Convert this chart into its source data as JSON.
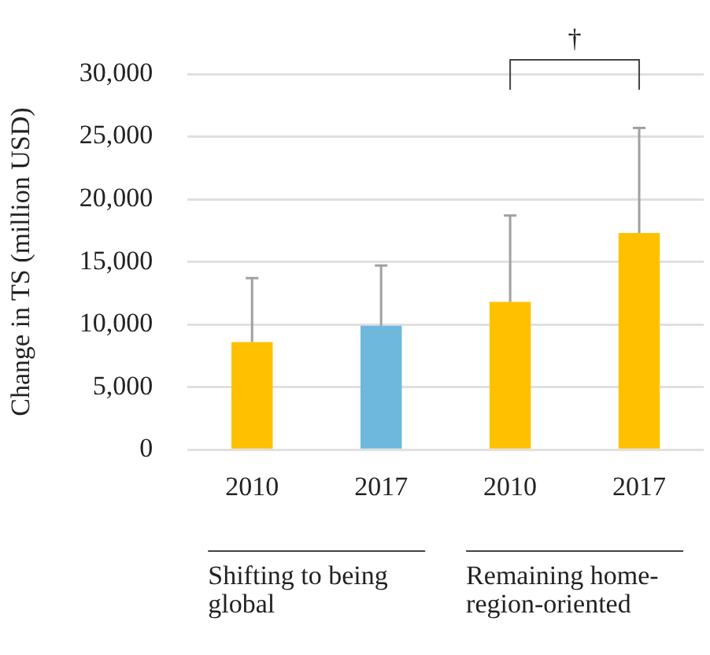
{
  "chart_data": {
    "type": "bar",
    "ylabel": "Change in TS (million USD)",
    "categories": [
      "2010",
      "2017",
      "2010",
      "2017"
    ],
    "values": [
      8600,
      9900,
      11800,
      17300
    ],
    "colors": [
      "#ffc000",
      "#6db8dc",
      "#ffc000",
      "#ffc000"
    ],
    "errors": [
      [
        8600,
        13700
      ],
      [
        9900,
        14700
      ],
      [
        11800,
        18700
      ],
      [
        17300,
        25700
      ]
    ],
    "ylim": [
      0,
      30000
    ],
    "yticks": [
      {
        "value": 0,
        "label": "0"
      },
      {
        "value": 5000,
        "label": "5,000"
      },
      {
        "value": 10000,
        "label": "10,000"
      },
      {
        "value": 15000,
        "label": "15,000"
      },
      {
        "value": 20000,
        "label": "20,000"
      },
      {
        "value": 25000,
        "label": "25,000"
      },
      {
        "value": 30000,
        "label": "30,000"
      }
    ],
    "grid": "y",
    "annotations": [
      "Shifting to being global",
      "Remaining home-region-oriented",
      "†"
    ]
  }
}
